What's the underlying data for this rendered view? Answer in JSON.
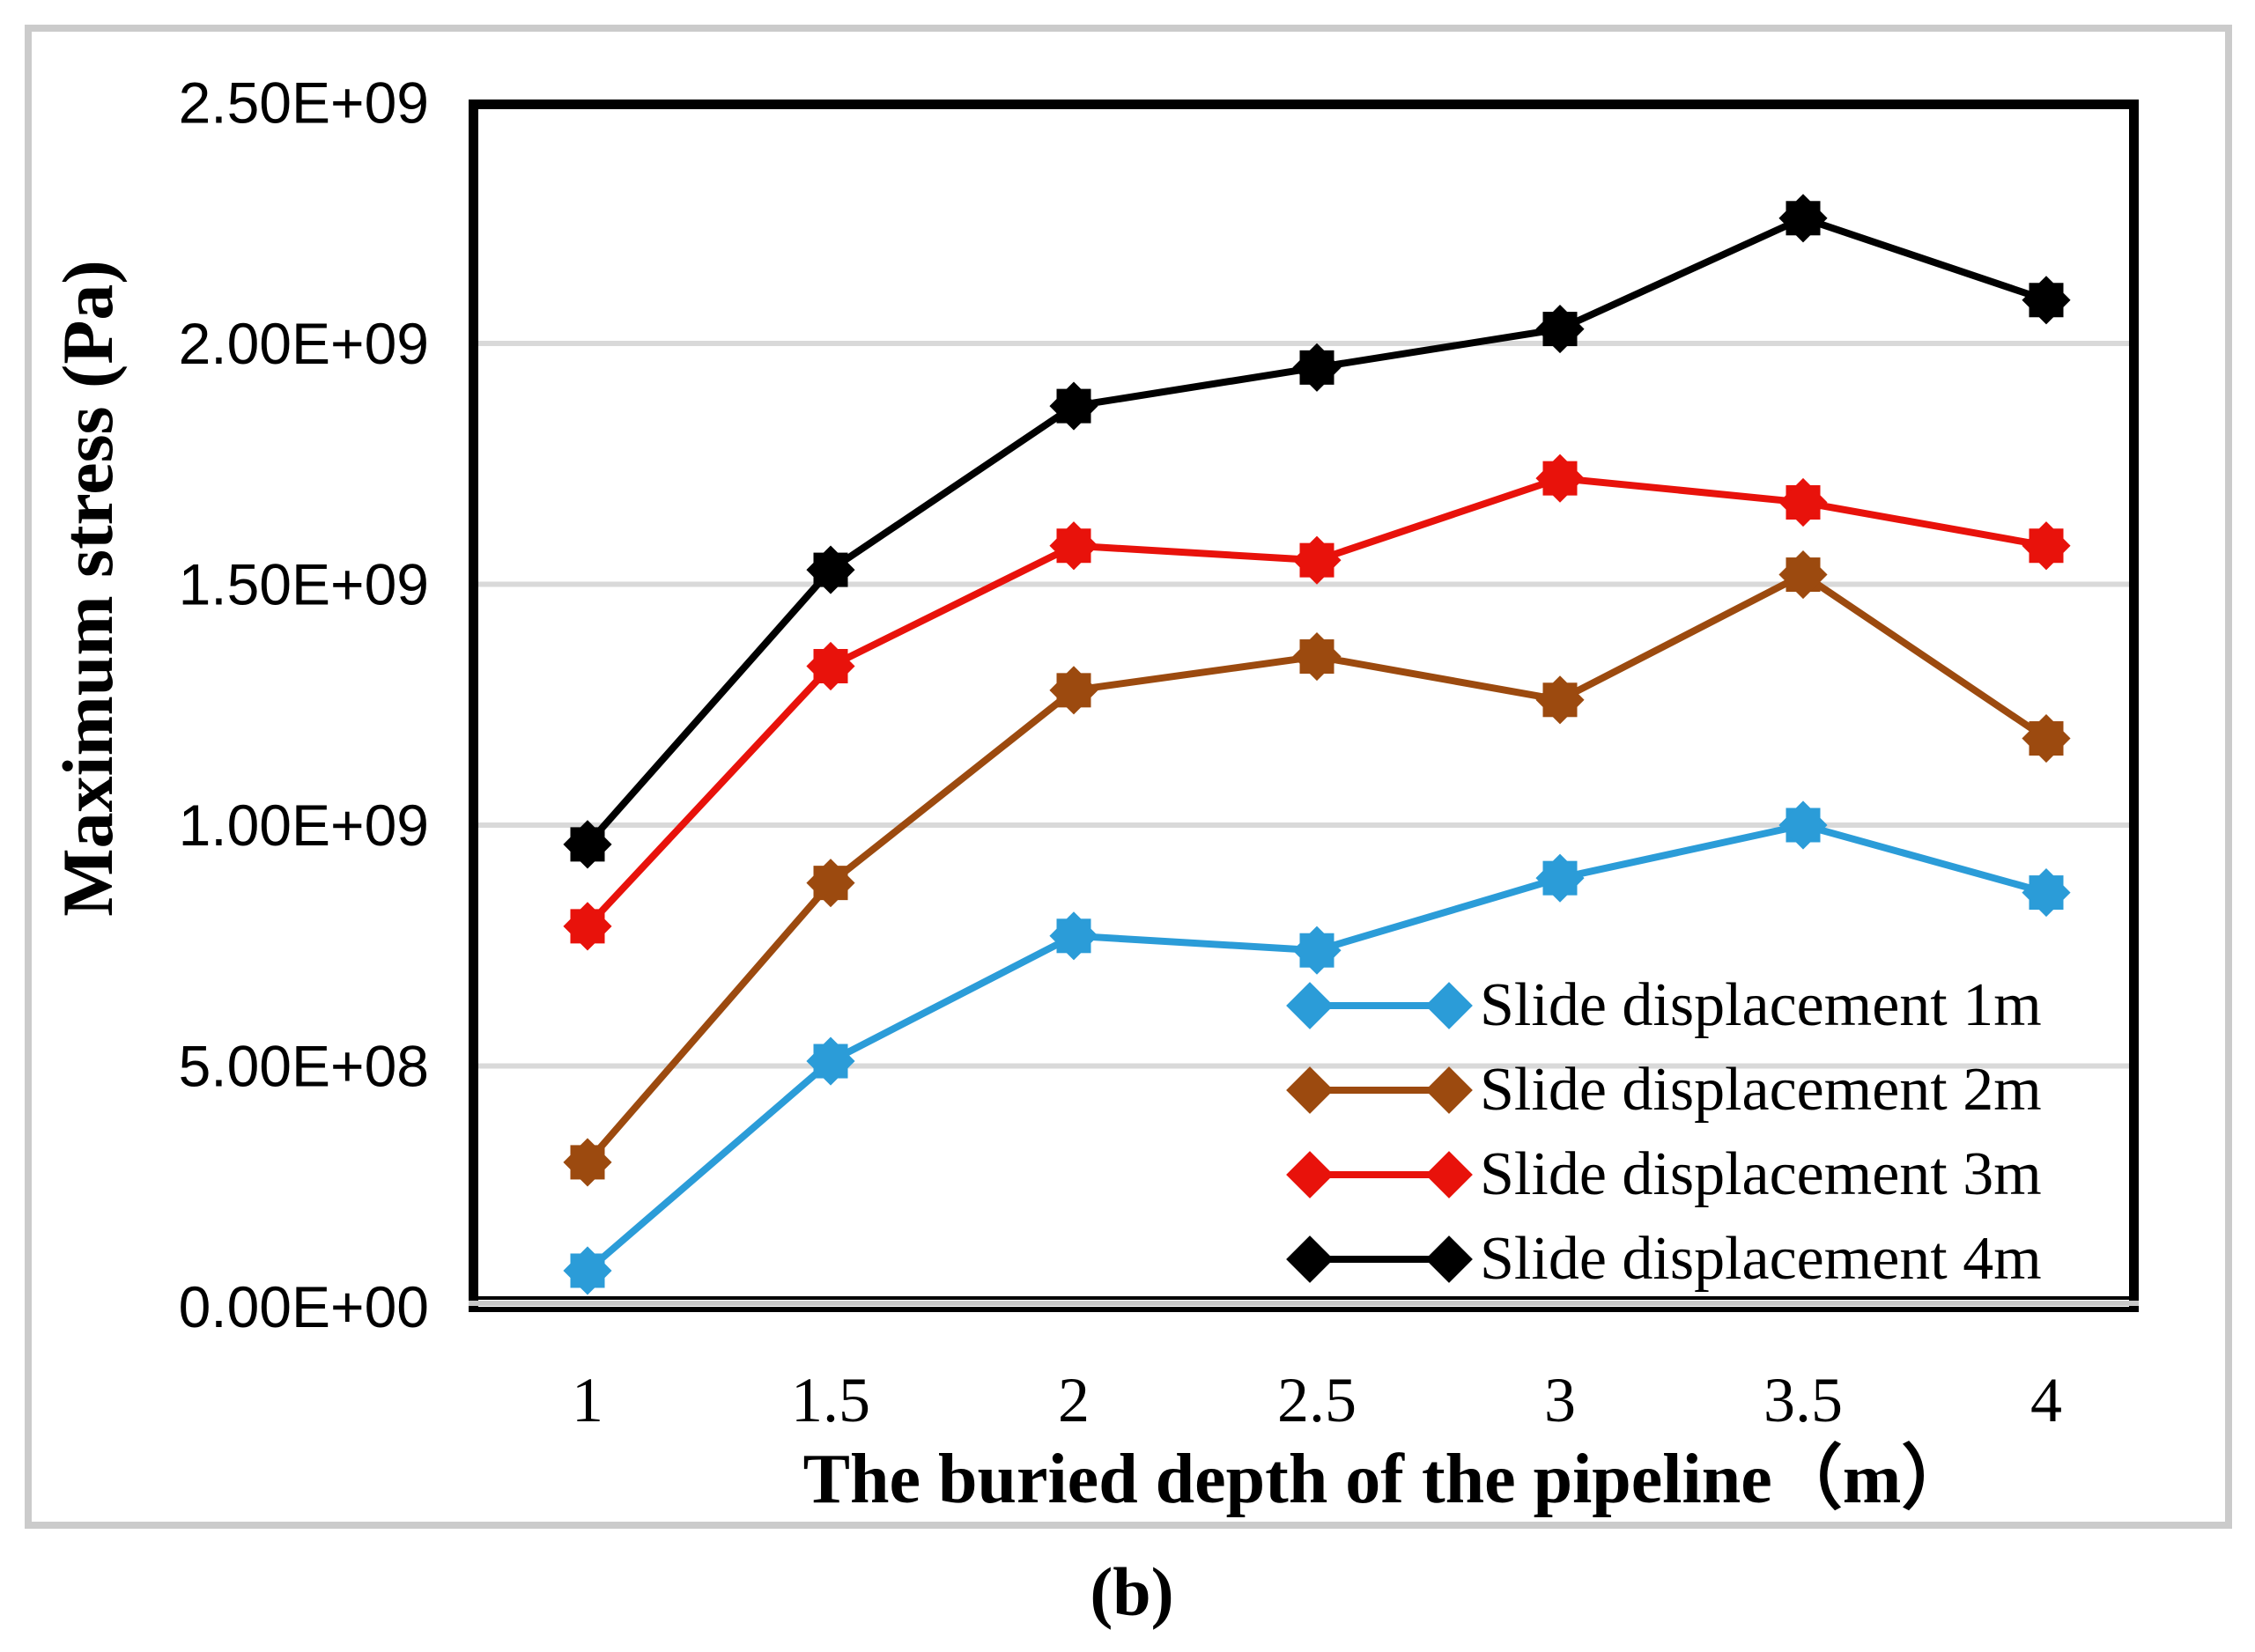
{
  "figure": {
    "caption": "(b)"
  },
  "colors": {
    "background": "#FFFFFF",
    "frame": "#000000",
    "gridline": "#D9D9D9",
    "outer_border": "#CBCBCB",
    "axis_gray": "#C9C9C9"
  },
  "chart_data": {
    "type": "line",
    "title": "",
    "xlabel": "The buried depth of the pipeline（m）",
    "ylabel": "Maximum stress (Pa)",
    "x": [
      1,
      1.5,
      2,
      2.5,
      3,
      3.5,
      4
    ],
    "x_tick_labels": [
      "1",
      "1.5",
      "2",
      "2.5",
      "3",
      "3.5",
      "4"
    ],
    "y_ticks": [
      {
        "label": "0.00E+00",
        "value": 0
      },
      {
        "label": "5.00E+08",
        "value": 500000000
      },
      {
        "label": "1.00E+09",
        "value": 1000000000
      },
      {
        "label": "1.50E+09",
        "value": 1500000000
      },
      {
        "label": "2.00E+09",
        "value": 2000000000
      },
      {
        "label": "2.50E+09",
        "value": 2500000000
      }
    ],
    "ylim": [
      0,
      2500000000
    ],
    "grid": true,
    "legend_position": "inside-bottom-right",
    "marker": "diamond",
    "series": [
      {
        "name": "Slide displacement 1m",
        "color": "#2B9CD8",
        "values": [
          75000000,
          510000000,
          770000000,
          740000000,
          890000000,
          1000000000,
          860000000
        ]
      },
      {
        "name": "Slide displacement 2m",
        "color": "#9C4A0F",
        "values": [
          300000000,
          880000000,
          1280000000,
          1350000000,
          1260000000,
          1520000000,
          1180000000
        ]
      },
      {
        "name": "Slide displacement 3m",
        "color": "#E8120B",
        "values": [
          790000000,
          1330000000,
          1580000000,
          1550000000,
          1720000000,
          1670000000,
          1580000000
        ]
      },
      {
        "name": "Slide displacement 4m",
        "color": "#000000",
        "values": [
          960000000,
          1530000000,
          1870000000,
          1950000000,
          2030000000,
          2260000000,
          2090000000
        ]
      }
    ]
  }
}
